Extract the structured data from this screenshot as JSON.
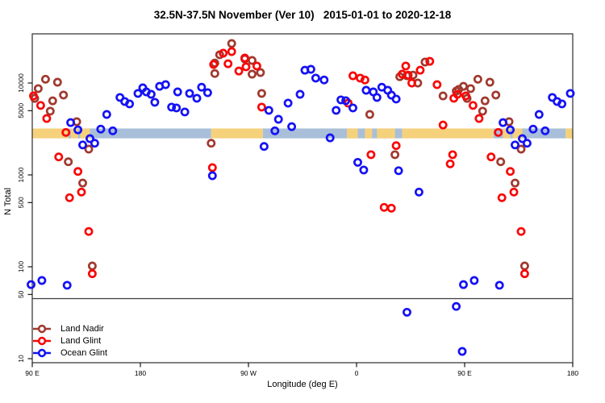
{
  "chart_data": {
    "type": "scatter",
    "title": "32.5N-37.5N November (Ver 10)   2015-01-01 to 2020-12-18",
    "xlabel": "Longitude (deg E)",
    "ylabel": "N Total",
    "x_encoding": "x axis spans 450 deg of longitude eastward from 90E; deg values below are cumulative from 90E (180=dateline, 270=90W, 360=0, 450=90E, 540=180)",
    "x_axis": {
      "range_deg": [
        90,
        540
      ],
      "ticks": [
        {
          "deg": 90,
          "label": "90 E"
        },
        {
          "deg": 180,
          "label": "180"
        },
        {
          "deg": 270,
          "label": "90 W"
        },
        {
          "deg": 360,
          "label": "0"
        },
        {
          "deg": 450,
          "label": "90 E"
        },
        {
          "deg": 540,
          "label": "180"
        }
      ]
    },
    "y_axis": {
      "scale": "log",
      "range": [
        9,
        34000
      ],
      "ticks": [
        10000,
        5000,
        1000,
        500,
        100,
        50,
        10
      ],
      "tick_labels": [
        "10000",
        "5000",
        "1000",
        "500",
        "100",
        "50",
        "10"
      ]
    },
    "grid": false,
    "reference_line_n": 45,
    "frame_color": "#3d3d3d",
    "coastline_band": {
      "n_top": 3200,
      "n_bottom": 2500,
      "ocean_color": "#a9bfd9",
      "land_color": "#f6d17c",
      "segments": [
        {
          "from": 90,
          "to": 120,
          "type": "land"
        },
        {
          "from": 120,
          "to": 239,
          "type": "ocean"
        },
        {
          "from": 239,
          "to": 282,
          "type": "land"
        },
        {
          "from": 282,
          "to": 398,
          "type": "ocean"
        },
        {
          "from": 398,
          "to": 474,
          "type": "land"
        },
        {
          "from": 474,
          "to": 540,
          "type": "ocean"
        }
      ],
      "land_patches": [
        {
          "from": 122,
          "to": 128
        },
        {
          "from": 130,
          "to": 138
        },
        {
          "from": 352,
          "to": 361
        },
        {
          "from": 367,
          "to": 373
        },
        {
          "from": 377,
          "to": 392
        },
        {
          "from": 482,
          "to": 488
        },
        {
          "from": 490,
          "to": 498
        },
        {
          "from": 534,
          "to": 540
        }
      ]
    },
    "legend_position": "bottom-left",
    "series": [
      {
        "name": "Land Nadir",
        "color": "#a0392f",
        "points": [
          [
            101,
            11000
          ],
          [
            111,
            10200
          ],
          [
            95,
            8700
          ],
          [
            116,
            7400
          ],
          [
            92,
            6800
          ],
          [
            107,
            6400
          ],
          [
            105,
            4940
          ],
          [
            127,
            3790
          ],
          [
            137,
            1910
          ],
          [
            120,
            1390
          ],
          [
            132,
            815
          ],
          [
            140,
            102
          ],
          [
            256,
            26900
          ],
          [
            246,
            20300
          ],
          [
            242,
            16500
          ],
          [
            267,
            18300
          ],
          [
            273,
            17600
          ],
          [
            273,
            12500
          ],
          [
            280,
            13000
          ],
          [
            242,
            12700
          ],
          [
            281,
            7700
          ],
          [
            239,
            2210
          ],
          [
            371,
            4550
          ],
          [
            396,
            11700
          ],
          [
            402,
            12000
          ],
          [
            407,
            12200
          ],
          [
            411,
            10000
          ],
          [
            417,
            16900
          ],
          [
            432,
            7240
          ],
          [
            443,
            8170
          ],
          [
            445,
            8500
          ],
          [
            449,
            9200
          ],
          [
            392,
            1660
          ],
          [
            461,
            11000
          ],
          [
            471,
            10200
          ],
          [
            455,
            8700
          ],
          [
            476,
            7400
          ],
          [
            452,
            6800
          ],
          [
            467,
            6400
          ],
          [
            465,
            4940
          ],
          [
            487,
            3790
          ],
          [
            497,
            1910
          ],
          [
            480,
            1390
          ],
          [
            492,
            815
          ],
          [
            500,
            102
          ]
        ]
      },
      {
        "name": "Land Glint",
        "color": "#f90808",
        "points": [
          [
            91,
            7240
          ],
          [
            97,
            5700
          ],
          [
            102,
            4110
          ],
          [
            118,
            2900
          ],
          [
            112,
            1570
          ],
          [
            128,
            1090
          ],
          [
            131,
            650
          ],
          [
            121,
            565
          ],
          [
            137,
            242
          ],
          [
            140,
            84
          ],
          [
            249,
            21100
          ],
          [
            256,
            22000
          ],
          [
            267,
            18700
          ],
          [
            241,
            15900
          ],
          [
            253,
            16200
          ],
          [
            262,
            13500
          ],
          [
            268,
            15000
          ],
          [
            277,
            15300
          ],
          [
            281,
            5470
          ],
          [
            240,
            1200
          ],
          [
            357,
            12000
          ],
          [
            363,
            11300
          ],
          [
            367,
            10800
          ],
          [
            353,
            6050
          ],
          [
            401,
            15300
          ],
          [
            398,
            12500
          ],
          [
            403,
            12200
          ],
          [
            413,
            13800
          ],
          [
            421,
            17200
          ],
          [
            406,
            10000
          ],
          [
            427,
            9600
          ],
          [
            441,
            6820
          ],
          [
            444,
            7540
          ],
          [
            432,
            3490
          ],
          [
            393,
            2080
          ],
          [
            372,
            1660
          ],
          [
            438,
            1320
          ],
          [
            440,
            1660
          ],
          [
            383,
            443
          ],
          [
            389,
            434
          ],
          [
            451,
            7240
          ],
          [
            457,
            5700
          ],
          [
            462,
            4110
          ],
          [
            478,
            2900
          ],
          [
            472,
            1570
          ],
          [
            488,
            1090
          ],
          [
            491,
            650
          ],
          [
            481,
            565
          ],
          [
            497,
            242
          ],
          [
            500,
            84
          ]
        ]
      },
      {
        "name": "Ocean Glint",
        "color": "#1512f4",
        "points": [
          [
            122,
            3710
          ],
          [
            128,
            3090
          ],
          [
            147,
            3150
          ],
          [
            157,
            3020
          ],
          [
            138,
            2480
          ],
          [
            142,
            2210
          ],
          [
            132,
            2120
          ],
          [
            152,
            4550
          ],
          [
            163,
            6960
          ],
          [
            167,
            6300
          ],
          [
            171,
            5930
          ],
          [
            178,
            7700
          ],
          [
            182,
            8850
          ],
          [
            185,
            8000
          ],
          [
            189,
            7540
          ],
          [
            192,
            6170
          ],
          [
            196,
            9200
          ],
          [
            201,
            9600
          ],
          [
            206,
            5470
          ],
          [
            89,
            64
          ],
          [
            98,
            71
          ],
          [
            119,
            63
          ],
          [
            211,
            8000
          ],
          [
            221,
            7700
          ],
          [
            227,
            6820
          ],
          [
            231,
            9000
          ],
          [
            236,
            7850
          ],
          [
            210,
            5360
          ],
          [
            217,
            4840
          ],
          [
            287,
            5040
          ],
          [
            295,
            4030
          ],
          [
            303,
            6050
          ],
          [
            313,
            7540
          ],
          [
            317,
            13800
          ],
          [
            322,
            14100
          ],
          [
            326,
            11300
          ],
          [
            292,
            3020
          ],
          [
            306,
            3350
          ],
          [
            283,
            2040
          ],
          [
            240,
            980
          ],
          [
            333,
            10800
          ],
          [
            347,
            6550
          ],
          [
            351,
            6420
          ],
          [
            357,
            5360
          ],
          [
            343,
            5040
          ],
          [
            368,
            8330
          ],
          [
            374,
            8000
          ],
          [
            377,
            6960
          ],
          [
            381,
            9000
          ],
          [
            386,
            8330
          ],
          [
            389,
            7390
          ],
          [
            393,
            6690
          ],
          [
            338,
            2530
          ],
          [
            361,
            1370
          ],
          [
            366,
            1130
          ],
          [
            395,
            1110
          ],
          [
            412,
            650
          ],
          [
            402,
            32
          ],
          [
            443,
            37
          ],
          [
            448,
            12
          ],
          [
            482,
            3710
          ],
          [
            488,
            3090
          ],
          [
            507,
            3150
          ],
          [
            517,
            3020
          ],
          [
            498,
            2480
          ],
          [
            502,
            2210
          ],
          [
            492,
            2120
          ],
          [
            512,
            4550
          ],
          [
            523,
            6960
          ],
          [
            527,
            6300
          ],
          [
            531,
            5930
          ],
          [
            538,
            7700
          ],
          [
            449,
            64
          ],
          [
            458,
            71
          ],
          [
            479,
            63
          ]
        ]
      }
    ]
  }
}
